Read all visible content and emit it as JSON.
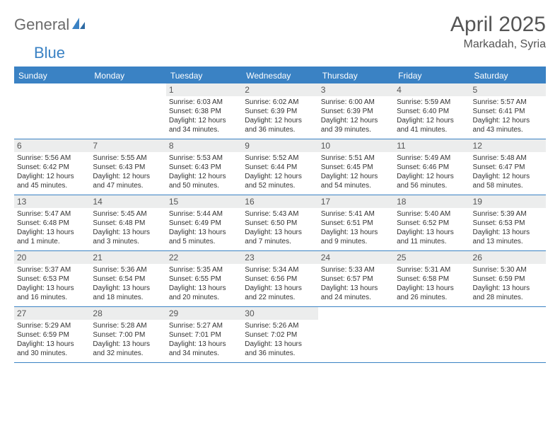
{
  "brand": {
    "name_a": "General",
    "name_b": "Blue"
  },
  "title": "April 2025",
  "location": "Markadah, Syria",
  "colors": {
    "accent": "#3a82c4",
    "header_bg": "#eceded",
    "text": "#333333",
    "title_text": "#555555",
    "bg": "#ffffff"
  },
  "weekdays": [
    "Sunday",
    "Monday",
    "Tuesday",
    "Wednesday",
    "Thursday",
    "Friday",
    "Saturday"
  ],
  "weeks": [
    [
      null,
      null,
      {
        "n": "1",
        "sr": "6:03 AM",
        "ss": "6:38 PM",
        "dl": "12 hours and 34 minutes."
      },
      {
        "n": "2",
        "sr": "6:02 AM",
        "ss": "6:39 PM",
        "dl": "12 hours and 36 minutes."
      },
      {
        "n": "3",
        "sr": "6:00 AM",
        "ss": "6:39 PM",
        "dl": "12 hours and 39 minutes."
      },
      {
        "n": "4",
        "sr": "5:59 AM",
        "ss": "6:40 PM",
        "dl": "12 hours and 41 minutes."
      },
      {
        "n": "5",
        "sr": "5:57 AM",
        "ss": "6:41 PM",
        "dl": "12 hours and 43 minutes."
      }
    ],
    [
      {
        "n": "6",
        "sr": "5:56 AM",
        "ss": "6:42 PM",
        "dl": "12 hours and 45 minutes."
      },
      {
        "n": "7",
        "sr": "5:55 AM",
        "ss": "6:43 PM",
        "dl": "12 hours and 47 minutes."
      },
      {
        "n": "8",
        "sr": "5:53 AM",
        "ss": "6:43 PM",
        "dl": "12 hours and 50 minutes."
      },
      {
        "n": "9",
        "sr": "5:52 AM",
        "ss": "6:44 PM",
        "dl": "12 hours and 52 minutes."
      },
      {
        "n": "10",
        "sr": "5:51 AM",
        "ss": "6:45 PM",
        "dl": "12 hours and 54 minutes."
      },
      {
        "n": "11",
        "sr": "5:49 AM",
        "ss": "6:46 PM",
        "dl": "12 hours and 56 minutes."
      },
      {
        "n": "12",
        "sr": "5:48 AM",
        "ss": "6:47 PM",
        "dl": "12 hours and 58 minutes."
      }
    ],
    [
      {
        "n": "13",
        "sr": "5:47 AM",
        "ss": "6:48 PM",
        "dl": "13 hours and 1 minute."
      },
      {
        "n": "14",
        "sr": "5:45 AM",
        "ss": "6:48 PM",
        "dl": "13 hours and 3 minutes."
      },
      {
        "n": "15",
        "sr": "5:44 AM",
        "ss": "6:49 PM",
        "dl": "13 hours and 5 minutes."
      },
      {
        "n": "16",
        "sr": "5:43 AM",
        "ss": "6:50 PM",
        "dl": "13 hours and 7 minutes."
      },
      {
        "n": "17",
        "sr": "5:41 AM",
        "ss": "6:51 PM",
        "dl": "13 hours and 9 minutes."
      },
      {
        "n": "18",
        "sr": "5:40 AM",
        "ss": "6:52 PM",
        "dl": "13 hours and 11 minutes."
      },
      {
        "n": "19",
        "sr": "5:39 AM",
        "ss": "6:53 PM",
        "dl": "13 hours and 13 minutes."
      }
    ],
    [
      {
        "n": "20",
        "sr": "5:37 AM",
        "ss": "6:53 PM",
        "dl": "13 hours and 16 minutes."
      },
      {
        "n": "21",
        "sr": "5:36 AM",
        "ss": "6:54 PM",
        "dl": "13 hours and 18 minutes."
      },
      {
        "n": "22",
        "sr": "5:35 AM",
        "ss": "6:55 PM",
        "dl": "13 hours and 20 minutes."
      },
      {
        "n": "23",
        "sr": "5:34 AM",
        "ss": "6:56 PM",
        "dl": "13 hours and 22 minutes."
      },
      {
        "n": "24",
        "sr": "5:33 AM",
        "ss": "6:57 PM",
        "dl": "13 hours and 24 minutes."
      },
      {
        "n": "25",
        "sr": "5:31 AM",
        "ss": "6:58 PM",
        "dl": "13 hours and 26 minutes."
      },
      {
        "n": "26",
        "sr": "5:30 AM",
        "ss": "6:59 PM",
        "dl": "13 hours and 28 minutes."
      }
    ],
    [
      {
        "n": "27",
        "sr": "5:29 AM",
        "ss": "6:59 PM",
        "dl": "13 hours and 30 minutes."
      },
      {
        "n": "28",
        "sr": "5:28 AM",
        "ss": "7:00 PM",
        "dl": "13 hours and 32 minutes."
      },
      {
        "n": "29",
        "sr": "5:27 AM",
        "ss": "7:01 PM",
        "dl": "13 hours and 34 minutes."
      },
      {
        "n": "30",
        "sr": "5:26 AM",
        "ss": "7:02 PM",
        "dl": "13 hours and 36 minutes."
      },
      null,
      null,
      null
    ]
  ],
  "labels": {
    "sunrise": "Sunrise:",
    "sunset": "Sunset:",
    "daylight": "Daylight:"
  }
}
